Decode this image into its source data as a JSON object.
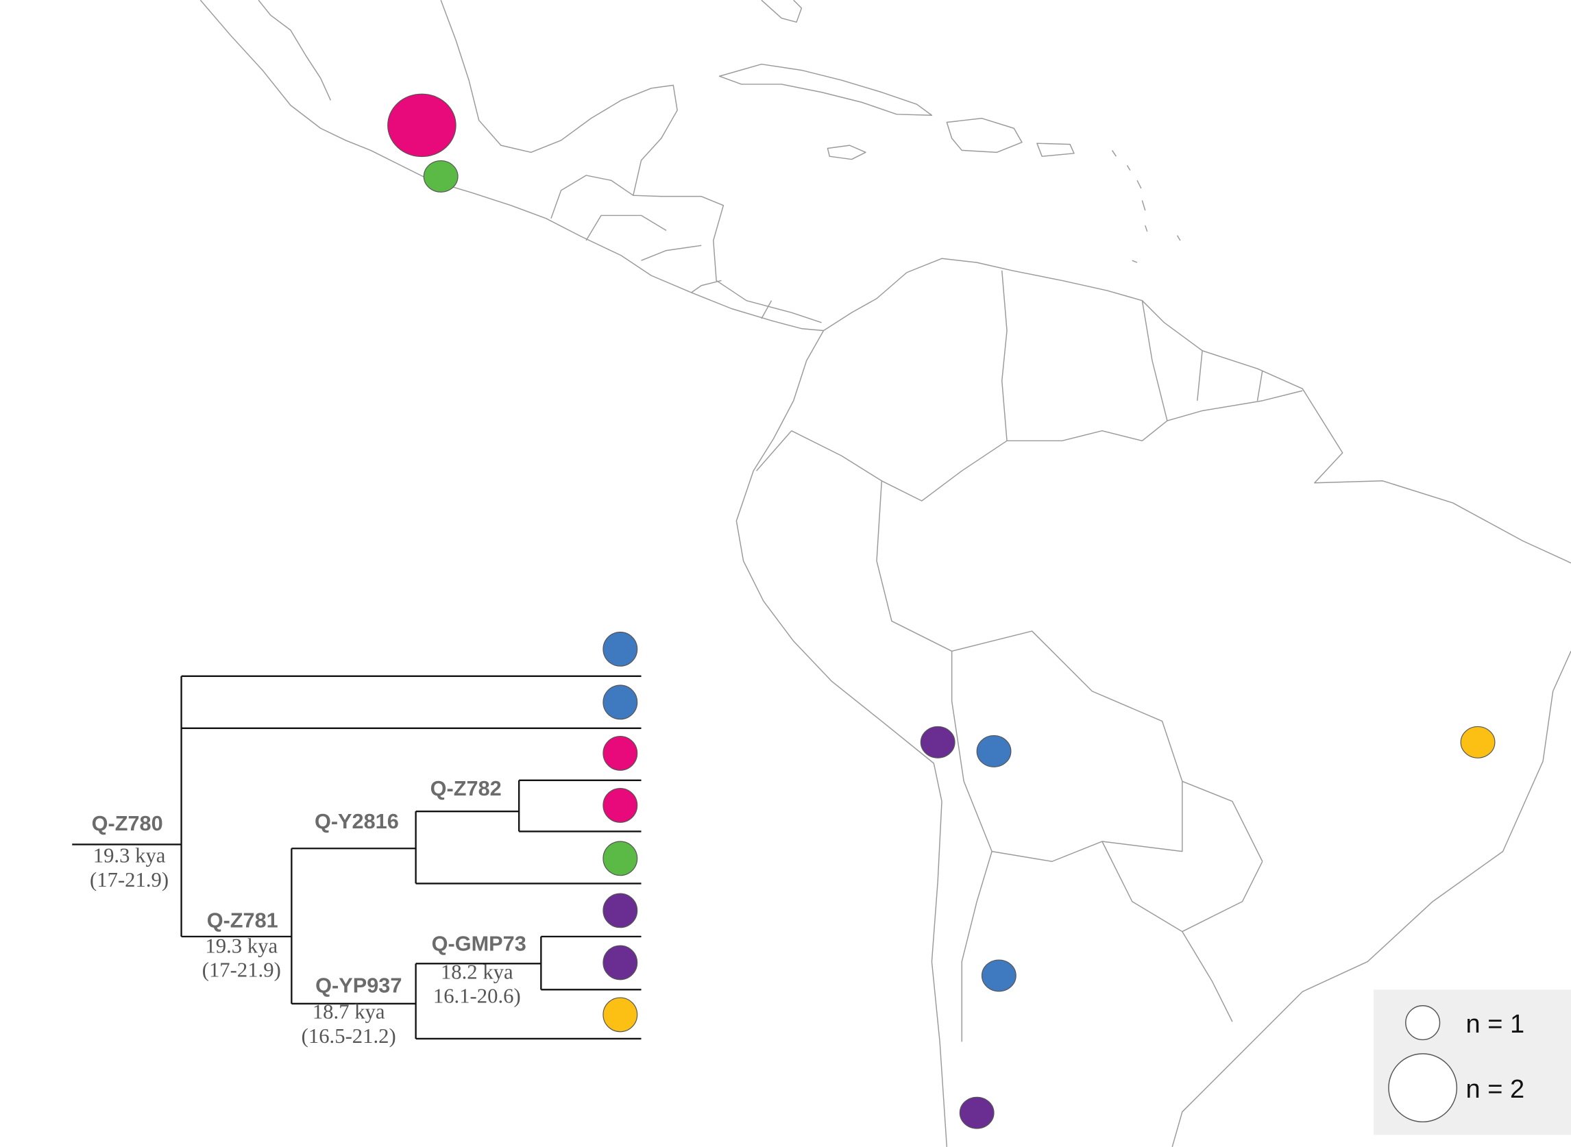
{
  "tree": {
    "nodes": [
      {
        "label": "Q-Z780",
        "age": "19.3 kya",
        "interval": "(17-21.9)"
      },
      {
        "label": "Q-Z781",
        "age": "19.3 kya",
        "interval": "(17-21.9)"
      },
      {
        "label": "Q-Y2816"
      },
      {
        "label": "Q-Z782"
      },
      {
        "label": "Q-YP937",
        "age": "18.7 kya",
        "interval": "(16.5-21.2)"
      },
      {
        "label": "Q-GMP73",
        "age": "18.2 kya",
        "interval": "16.1-20.6)"
      }
    ],
    "leaves": [
      {
        "color": "#3f79bf"
      },
      {
        "color": "#3f79bf"
      },
      {
        "color": "#e8097a"
      },
      {
        "color": "#e8097a"
      },
      {
        "color": "#5bb946"
      },
      {
        "color": "#6a2e92"
      },
      {
        "color": "#6a2e92"
      },
      {
        "color": "#fcbf13"
      }
    ]
  },
  "map": {
    "points": [
      {
        "color": "#e8097a",
        "n": 2
      },
      {
        "color": "#5bb946",
        "n": 1
      },
      {
        "color": "#6a2e92",
        "n": 1
      },
      {
        "color": "#3f79bf",
        "n": 1
      },
      {
        "color": "#fcbf13",
        "n": 1
      },
      {
        "color": "#3f79bf",
        "n": 1
      },
      {
        "color": "#6a2e92",
        "n": 1
      }
    ]
  },
  "legend": {
    "entries": [
      {
        "label": "n = 1",
        "n": 1
      },
      {
        "label": "n = 2",
        "n": 2
      }
    ]
  }
}
